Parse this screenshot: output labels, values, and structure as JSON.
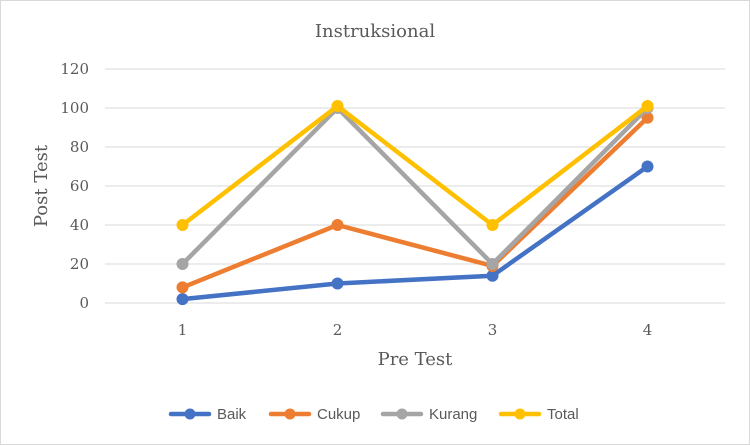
{
  "chart_data": {
    "type": "line",
    "title": "Instruksional",
    "xlabel": "Pre Test",
    "ylabel": "Post Test",
    "categories": [
      "1",
      "2",
      "3",
      "4"
    ],
    "ylim": [
      0,
      120
    ],
    "yticks": [
      0,
      20,
      40,
      60,
      80,
      100,
      120
    ],
    "grid": true,
    "legend_position": "bottom",
    "series": [
      {
        "name": "Baik",
        "color": "#4472c4",
        "values": [
          2,
          10,
          14,
          70
        ]
      },
      {
        "name": "Cukup",
        "color": "#ed7d31",
        "values": [
          8,
          40,
          19,
          95
        ]
      },
      {
        "name": "Kurang",
        "color": "#a5a5a5",
        "values": [
          20,
          100,
          20,
          100
        ]
      },
      {
        "name": "Total",
        "color": "#ffc000",
        "values": [
          40,
          101,
          40,
          101
        ]
      }
    ]
  }
}
